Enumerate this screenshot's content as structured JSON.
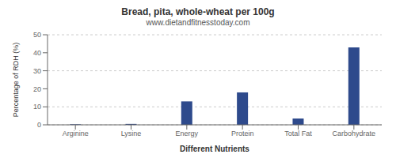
{
  "chart_data": {
    "type": "bar",
    "title": "Bread, pita, whole-wheat per 100g",
    "subtitle": "www.dietandfitnesstoday.com",
    "xlabel": "Different Nutrients",
    "ylabel": "Percentage of RDH (%)",
    "categories": [
      "Arginine",
      "Lysine",
      "Energy",
      "Protein",
      "Total Fat",
      "Carbohydrate"
    ],
    "values": [
      0.3,
      0.5,
      13.0,
      18.0,
      3.5,
      43.0
    ],
    "color": "#2e4a8c",
    "ylim": [
      0,
      50
    ],
    "yticks": [
      0,
      10,
      20,
      30,
      40,
      50
    ],
    "grid": true
  }
}
